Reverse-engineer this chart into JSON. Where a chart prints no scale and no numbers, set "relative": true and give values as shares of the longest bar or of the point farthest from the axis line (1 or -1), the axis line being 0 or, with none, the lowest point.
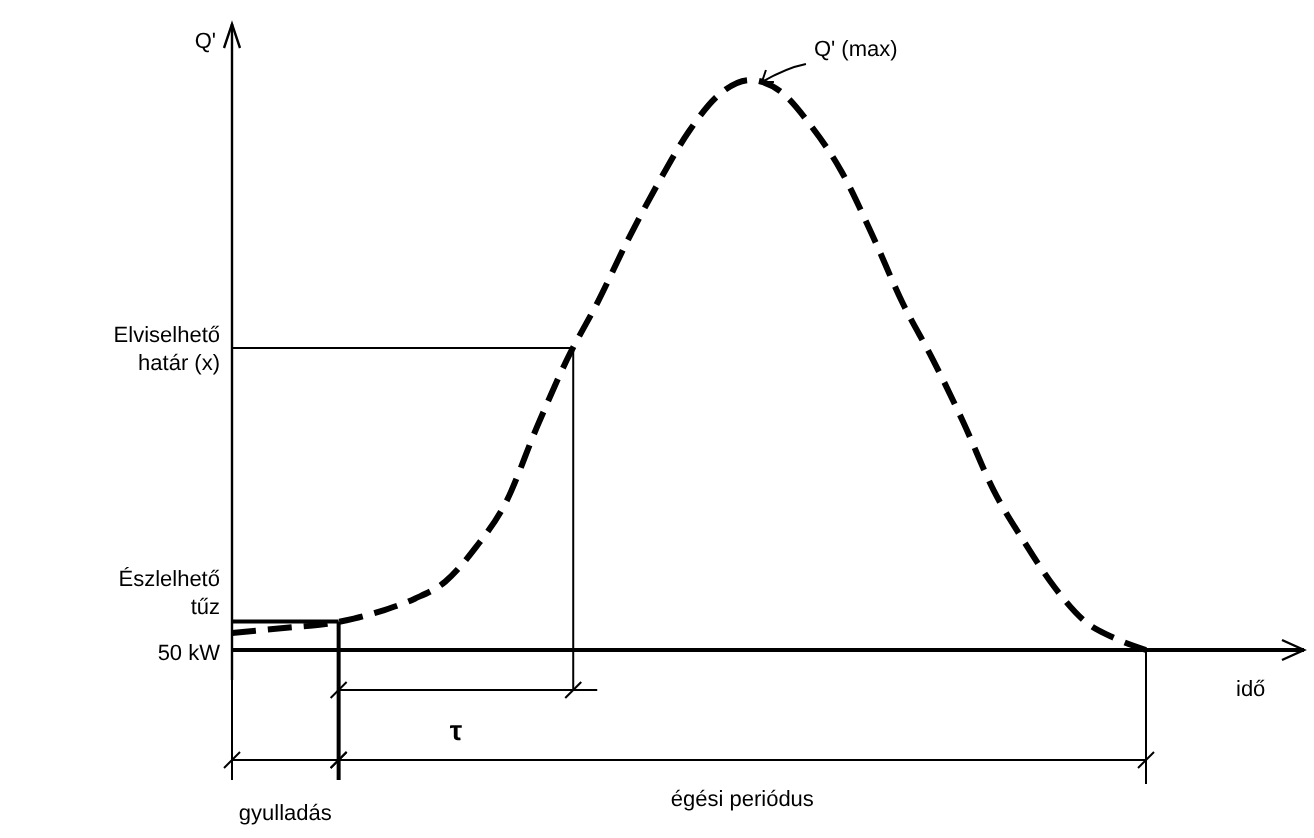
{
  "chart_data": {
    "type": "line",
    "relative": true,
    "xlabel": "idő",
    "ylabel": "Q'",
    "line_style": "dashed",
    "marker": "none",
    "color": "#000000",
    "categories": [
      null,
      null,
      null,
      null,
      null,
      null,
      null,
      null,
      null,
      null,
      null,
      null,
      null,
      null,
      null,
      null,
      null,
      null,
      null,
      null,
      null,
      null,
      null,
      null,
      null,
      null,
      null,
      null,
      null,
      null,
      null
    ],
    "values": [
      0.03,
      0.035,
      0.04,
      0.045,
      0.055,
      0.07,
      0.09,
      0.12,
      0.18,
      0.26,
      0.39,
      0.51,
      0.61,
      0.72,
      0.82,
      0.91,
      0.975,
      1,
      0.98,
      0.92,
      0.84,
      0.73,
      0.61,
      0.51,
      0.4,
      0.28,
      0.19,
      0.11,
      0.05,
      0.02,
      0
    ],
    "ref_lines": [
      {
        "axis": "y",
        "value": 0.05,
        "label": "Észlelhető tűz"
      },
      {
        "axis": "y",
        "value": 0.53,
        "label": "Elviselhető határ (x)"
      }
    ],
    "annotations": [
      "Q' (max)",
      "50 kW",
      "gyulladás",
      "τ",
      "égési periódus"
    ]
  }
}
